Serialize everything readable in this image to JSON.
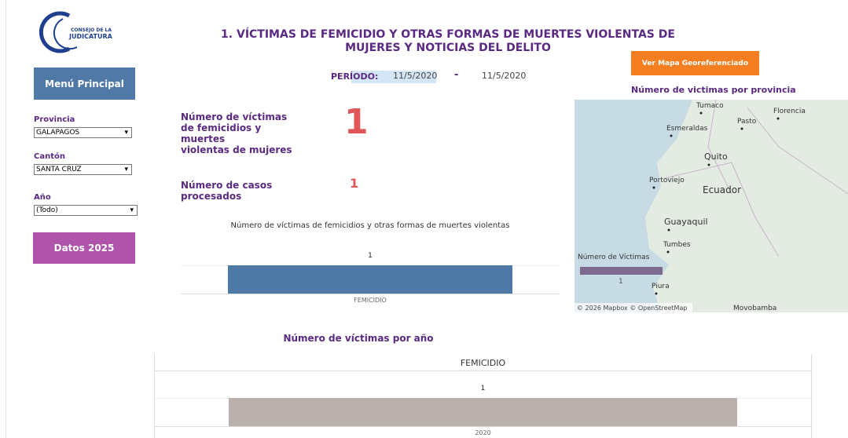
{
  "logo": {
    "line1": "CONSEJO DE LA",
    "line2": "JUDICATURA"
  },
  "title_lines": [
    "1. VÍCTIMAS DE FEMICIDIO Y OTRAS FORMAS DE MUERTES VIOLENTAS DE",
    "MUJERES Y NOTICIAS DEL DELITO"
  ],
  "sidebar": {
    "menu": "Menú Principal",
    "filters": [
      {
        "label": "Provincia",
        "value": "GALAPAGOS"
      },
      {
        "label": "Cantón",
        "value": "SANTA CRUZ"
      },
      {
        "label": "Año",
        "value": "(Todo)"
      }
    ],
    "button": "Datos 2025"
  },
  "map_button": "Ver Mapa Georeferenciado",
  "period": {
    "label": "PERÍODO:",
    "start": "11/5/2020",
    "separator": "-",
    "end": "11/5/2020"
  },
  "kpis": [
    {
      "label_lines": [
        "Número de víctimas",
        "de femicidios y",
        "muertes",
        "violentas de mujeres"
      ],
      "value": 1
    },
    {
      "label_lines": [
        "Número de casos",
        "procesados"
      ],
      "value": 1
    }
  ],
  "chart1": {
    "type": "bar",
    "title": "Número de víctimas de femicidios y otras formas de muertes violentas",
    "categories": [
      "FEMICIDIO"
    ],
    "values": [
      1
    ],
    "color": "#4e79a7"
  },
  "map": {
    "title": "Número de victimas por provincia",
    "places": [
      "Tumaco",
      "Florencia",
      "Pasto",
      "Esmeraldas",
      "Quito",
      "Portoviejo",
      "Ecuador",
      "Guayaquil",
      "Tumbes",
      "Piura",
      "Movobamba"
    ],
    "legend": {
      "title": "Número de Víctimas",
      "value": 1
    },
    "attribution": "© 2026 Mapbox © OpenStreetMap"
  },
  "chart2": {
    "type": "bar",
    "title": "Número de víctimas por año",
    "header": "FEMICIDIO",
    "categories": [
      "2020"
    ],
    "values": [
      1
    ],
    "color": "#bab0ac"
  }
}
